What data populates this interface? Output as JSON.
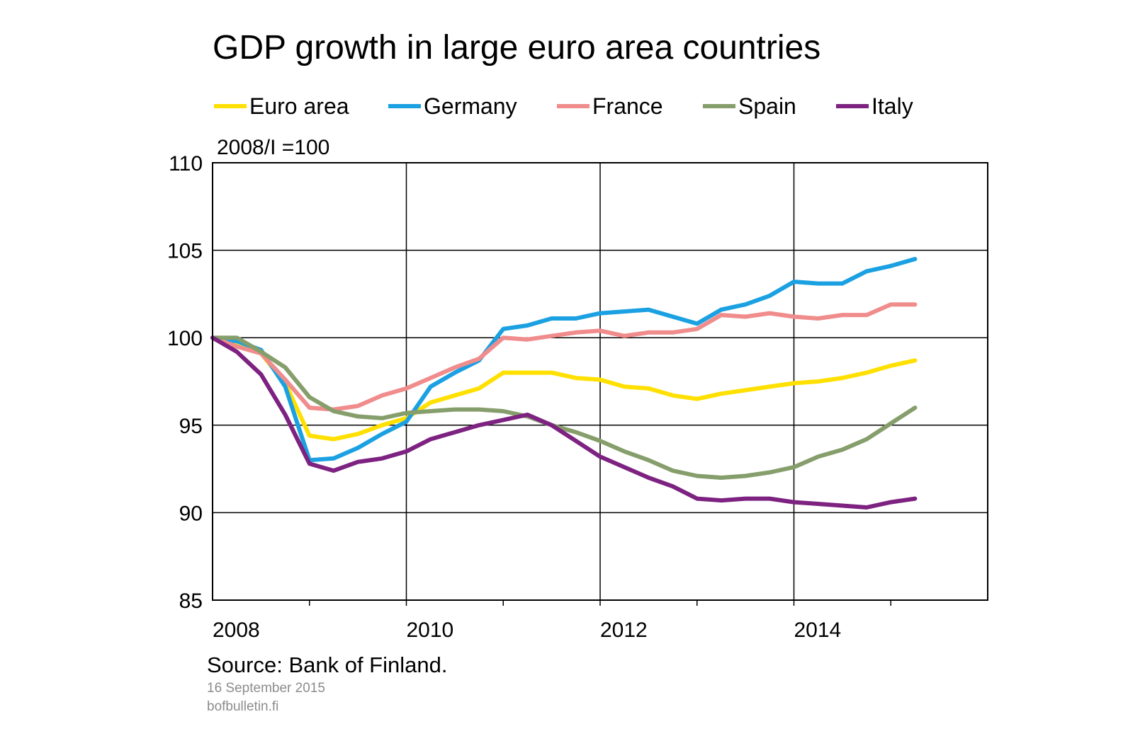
{
  "title": "GDP growth in large euro area countries",
  "unit_label": "2008/I =100",
  "source": "Source: Bank of Finland.",
  "date": "16 September 2015",
  "site": "bofbulletin.fi",
  "chart_data": {
    "type": "line",
    "title": "GDP growth in large euro area countries",
    "xlabel": "",
    "ylabel": "2008/I =100",
    "x": [
      "2008Q1",
      "2008Q2",
      "2008Q3",
      "2008Q4",
      "2009Q1",
      "2009Q2",
      "2009Q3",
      "2009Q4",
      "2010Q1",
      "2010Q2",
      "2010Q3",
      "2010Q4",
      "2011Q1",
      "2011Q2",
      "2011Q3",
      "2011Q4",
      "2012Q1",
      "2012Q2",
      "2012Q3",
      "2012Q4",
      "2013Q1",
      "2013Q2",
      "2013Q3",
      "2013Q4",
      "2014Q1",
      "2014Q2",
      "2014Q3",
      "2014Q4",
      "2015Q1",
      "2015Q2"
    ],
    "x_tick_labels": [
      "2008",
      "2010",
      "2012",
      "2014"
    ],
    "y_tick_labels": [
      "85",
      "90",
      "95",
      "100",
      "105",
      "110"
    ],
    "ylim": [
      85,
      110
    ],
    "grid": true,
    "legend_position": "top",
    "series": [
      {
        "name": "Euro area",
        "color": "#FFE000",
        "values": [
          100.0,
          99.6,
          99.1,
          97.4,
          94.4,
          94.2,
          94.5,
          95.0,
          95.4,
          96.3,
          96.7,
          97.1,
          98.0,
          98.0,
          98.0,
          97.7,
          97.6,
          97.2,
          97.1,
          96.7,
          96.5,
          96.8,
          97.0,
          97.2,
          97.4,
          97.5,
          97.7,
          98.0,
          98.4,
          98.7
        ]
      },
      {
        "name": "Germany",
        "color": "#1BA1E2",
        "values": [
          100.0,
          99.8,
          99.3,
          97.2,
          93.0,
          93.1,
          93.7,
          94.5,
          95.2,
          97.2,
          98.0,
          98.7,
          100.5,
          100.7,
          101.1,
          101.1,
          101.4,
          101.5,
          101.6,
          101.2,
          100.8,
          101.6,
          101.9,
          102.4,
          103.2,
          103.1,
          103.1,
          103.8,
          104.1,
          104.5
        ]
      },
      {
        "name": "France",
        "color": "#F08C8C",
        "values": [
          100.0,
          99.5,
          99.1,
          97.6,
          96.0,
          95.9,
          96.1,
          96.7,
          97.1,
          97.7,
          98.3,
          98.8,
          100.0,
          99.9,
          100.1,
          100.3,
          100.4,
          100.1,
          100.3,
          100.3,
          100.5,
          101.3,
          101.2,
          101.4,
          101.2,
          101.1,
          101.3,
          101.3,
          101.9,
          101.9
        ]
      },
      {
        "name": "Spain",
        "color": "#869E6B",
        "values": [
          100.0,
          100.0,
          99.2,
          98.3,
          96.6,
          95.8,
          95.5,
          95.4,
          95.7,
          95.8,
          95.9,
          95.9,
          95.8,
          95.5,
          95.0,
          94.6,
          94.1,
          93.5,
          93.0,
          92.4,
          92.1,
          92.0,
          92.1,
          92.3,
          92.6,
          93.2,
          93.6,
          94.2,
          95.1,
          96.0
        ]
      },
      {
        "name": "Italy",
        "color": "#7D2281",
        "values": [
          100.0,
          99.2,
          97.9,
          95.6,
          92.8,
          92.4,
          92.9,
          93.1,
          93.5,
          94.2,
          94.6,
          95.0,
          95.3,
          95.6,
          95.0,
          94.1,
          93.2,
          92.6,
          92.0,
          91.5,
          90.8,
          90.7,
          90.8,
          90.8,
          90.6,
          90.5,
          90.4,
          90.3,
          90.6,
          90.8
        ]
      }
    ]
  }
}
